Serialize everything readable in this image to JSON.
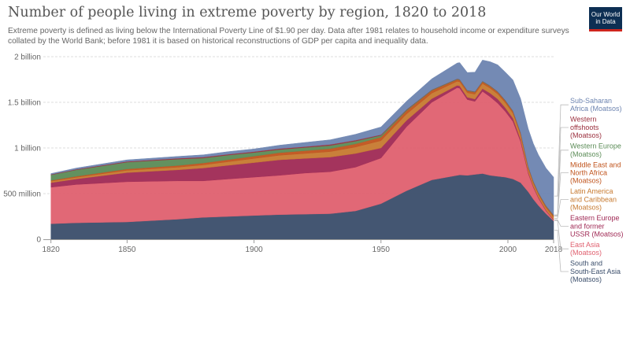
{
  "header": {
    "title": "Number of people living in extreme poverty by region, 1820 to 2018",
    "subtitle": "Extreme poverty is defined as living below the International Poverty Line of $1.90 per day. Data after 1981 relates to household income or expenditure surveys collated by the World Bank; before 1981 it is based on historical reconstructions of GDP per capita and inequality data."
  },
  "logo": {
    "line1": "Our World",
    "line2": "in Data",
    "background": "#0d2f53",
    "accent": "#ce261e"
  },
  "chart_data": {
    "type": "area",
    "stacked": true,
    "x": [
      1820,
      1830,
      1850,
      1870,
      1880,
      1890,
      1900,
      1910,
      1920,
      1930,
      1940,
      1950,
      1960,
      1970,
      1980,
      1981,
      1984,
      1987,
      1990,
      1993,
      1996,
      1999,
      2002,
      2005,
      2008,
      2010,
      2012,
      2015,
      2018
    ],
    "xlim": [
      1817,
      2018
    ],
    "ylim": [
      0,
      2000000000
    ],
    "x_ticks": [
      {
        "value": 1820,
        "label": "1820"
      },
      {
        "value": 1850,
        "label": "1850"
      },
      {
        "value": 1900,
        "label": "1900"
      },
      {
        "value": 1950,
        "label": "1950"
      },
      {
        "value": 2000,
        "label": "2000"
      },
      {
        "value": 2018,
        "label": "2018"
      }
    ],
    "y_ticks": [
      {
        "value": 0,
        "label": "0"
      },
      {
        "value": 500000000,
        "label": "500 million"
      },
      {
        "value": 1000000000,
        "label": "1 billion"
      },
      {
        "value": 1500000000,
        "label": "1.5 billion"
      },
      {
        "value": 2000000000,
        "label": "2 billion"
      }
    ],
    "grid": "horizontal-dashed",
    "legend_position": "right",
    "series": [
      {
        "name": "South and South-East Asia (Moatsos)",
        "color": "#3b4e6b",
        "values": [
          170000000,
          180000000,
          190000000,
          220000000,
          240000000,
          250000000,
          260000000,
          270000000,
          275000000,
          280000000,
          310000000,
          390000000,
          530000000,
          650000000,
          700000000,
          705000000,
          700000000,
          710000000,
          720000000,
          700000000,
          690000000,
          680000000,
          660000000,
          620000000,
          520000000,
          440000000,
          370000000,
          280000000,
          200000000
        ]
      },
      {
        "name": "East Asia (Moatsos)",
        "color": "#e0606f",
        "values": [
          400000000,
          420000000,
          440000000,
          420000000,
          400000000,
          410000000,
          420000000,
          430000000,
          450000000,
          460000000,
          480000000,
          500000000,
          700000000,
          850000000,
          960000000,
          950000000,
          830000000,
          800000000,
          900000000,
          860000000,
          800000000,
          720000000,
          630000000,
          450000000,
          200000000,
          130000000,
          80000000,
          30000000,
          10000000
        ]
      },
      {
        "name": "Eastern Europe and former USSR (Moatsos)",
        "color": "#a02a55",
        "values": [
          50000000,
          60000000,
          100000000,
          120000000,
          140000000,
          150000000,
          160000000,
          170000000,
          160000000,
          160000000,
          150000000,
          110000000,
          70000000,
          40000000,
          25000000,
          25000000,
          25000000,
          25000000,
          30000000,
          40000000,
          45000000,
          40000000,
          35000000,
          25000000,
          15000000,
          12000000,
          10000000,
          8000000,
          6000000
        ]
      },
      {
        "name": "Latin America and Caribbean (Moatsos)",
        "color": "#c77a30",
        "values": [
          15000000,
          18000000,
          25000000,
          30000000,
          35000000,
          40000000,
          45000000,
          50000000,
          55000000,
          60000000,
          70000000,
          80000000,
          70000000,
          60000000,
          45000000,
          45000000,
          50000000,
          55000000,
          55000000,
          55000000,
          55000000,
          55000000,
          55000000,
          50000000,
          40000000,
          35000000,
          32000000,
          28000000,
          25000000
        ]
      },
      {
        "name": "Middle East and North Africa (Moatsos)",
        "color": "#c0541d",
        "values": [
          10000000,
          12000000,
          15000000,
          18000000,
          20000000,
          22000000,
          25000000,
          28000000,
          30000000,
          32000000,
          35000000,
          38000000,
          35000000,
          30000000,
          20000000,
          20000000,
          20000000,
          20000000,
          20000000,
          20000000,
          20000000,
          20000000,
          20000000,
          18000000,
          15000000,
          14000000,
          13000000,
          15000000,
          18000000
        ]
      },
      {
        "name": "Western Europe (Moatsos)",
        "color": "#5b8c57",
        "values": [
          60000000,
          70000000,
          75000000,
          70000000,
          55000000,
          50000000,
          40000000,
          35000000,
          35000000,
          35000000,
          30000000,
          20000000,
          10000000,
          5000000,
          5000000,
          5000000,
          5000000,
          5000000,
          5000000,
          5000000,
          5000000,
          5000000,
          5000000,
          5000000,
          5000000,
          5000000,
          5000000,
          5000000,
          5000000
        ]
      },
      {
        "name": "Western offshoots (Moatsos)",
        "color": "#9b2f3d",
        "values": [
          5000000,
          6000000,
          8000000,
          9000000,
          10000000,
          10000000,
          10000000,
          10000000,
          10000000,
          12000000,
          10000000,
          8000000,
          5000000,
          3000000,
          3000000,
          3000000,
          3000000,
          3000000,
          3000000,
          3000000,
          3000000,
          3000000,
          3000000,
          3000000,
          3000000,
          3000000,
          3000000,
          3000000,
          3000000
        ]
      },
      {
        "name": "Sub-Saharan Africa (Moatsos)",
        "color": "#6d84b0",
        "values": [
          10000000,
          14000000,
          17000000,
          21000000,
          25000000,
          28000000,
          30000000,
          37000000,
          45000000,
          51000000,
          65000000,
          84000000,
          90000000,
          120000000,
          172000000,
          182000000,
          194000000,
          212000000,
          230000000,
          262000000,
          292000000,
          307000000,
          337000000,
          369000000,
          412000000,
          411000000,
          412000000,
          411000000,
          413000000
        ]
      }
    ],
    "legend": [
      {
        "lines": [
          "Sub-Saharan",
          "Africa (Moatsos)"
        ],
        "color": "#6d84b0"
      },
      {
        "lines": [
          "Western",
          "offshoots",
          "(Moatsos)"
        ],
        "color": "#9b2f3d"
      },
      {
        "lines": [
          "Western Europe",
          "(Moatsos)"
        ],
        "color": "#5b8c57"
      },
      {
        "lines": [
          "Middle East and",
          "North Africa",
          "(Moatsos)"
        ],
        "color": "#c0541d"
      },
      {
        "lines": [
          "Latin America",
          "and Caribbean",
          "(Moatsos)"
        ],
        "color": "#c77a30"
      },
      {
        "lines": [
          "Eastern Europe",
          "and former",
          "USSR (Moatsos)"
        ],
        "color": "#a02a55"
      },
      {
        "lines": [
          "East Asia",
          "(Moatsos)"
        ],
        "color": "#e0606f"
      },
      {
        "lines": [
          "South and",
          "South-East Asia",
          "(Moatsos)"
        ],
        "color": "#3b4e6b"
      }
    ]
  }
}
